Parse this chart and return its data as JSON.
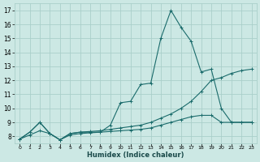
{
  "xlabel": "Humidex (Indice chaleur)",
  "ylabel": "",
  "background_color": "#cce8e4",
  "grid_color": "#aacfca",
  "line_color": "#1a6b6b",
  "xlim": [
    -0.5,
    23.5
  ],
  "ylim": [
    7.5,
    17.5
  ],
  "xticks": [
    0,
    1,
    2,
    3,
    4,
    5,
    6,
    7,
    8,
    9,
    10,
    11,
    12,
    13,
    14,
    15,
    16,
    17,
    18,
    19,
    20,
    21,
    22,
    23
  ],
  "yticks": [
    8,
    9,
    10,
    11,
    12,
    13,
    14,
    15,
    16,
    17
  ],
  "line1_x": [
    0,
    1,
    2,
    3,
    4,
    5,
    6,
    7,
    8,
    9,
    10,
    11,
    12,
    13,
    14,
    15,
    16,
    17,
    18,
    19,
    20,
    21,
    22,
    23
  ],
  "line1_y": [
    7.8,
    8.3,
    9.0,
    8.2,
    7.75,
    8.2,
    8.3,
    8.3,
    8.3,
    8.8,
    10.4,
    10.5,
    11.7,
    11.8,
    15.0,
    17.0,
    15.8,
    14.8,
    12.6,
    12.8,
    10.0,
    9.0,
    9.0,
    9.0
  ],
  "line2_x": [
    0,
    1,
    2,
    3,
    4,
    5,
    6,
    7,
    8,
    9,
    10,
    11,
    12,
    13,
    14,
    15,
    16,
    17,
    18,
    19,
    20,
    21,
    22,
    23
  ],
  "line2_y": [
    7.8,
    8.3,
    9.0,
    8.2,
    7.75,
    8.2,
    8.3,
    8.35,
    8.4,
    8.5,
    8.6,
    8.7,
    8.8,
    9.0,
    9.3,
    9.6,
    10.0,
    10.5,
    11.2,
    12.0,
    12.2,
    12.5,
    12.7,
    12.8
  ],
  "line3_x": [
    0,
    1,
    2,
    3,
    4,
    5,
    6,
    7,
    8,
    9,
    10,
    11,
    12,
    13,
    14,
    15,
    16,
    17,
    18,
    19,
    20,
    21,
    22,
    23
  ],
  "line3_y": [
    7.8,
    8.1,
    8.4,
    8.2,
    7.75,
    8.1,
    8.2,
    8.25,
    8.3,
    8.35,
    8.4,
    8.45,
    8.5,
    8.6,
    8.8,
    9.0,
    9.2,
    9.4,
    9.5,
    9.5,
    9.0,
    9.0,
    9.0,
    9.0
  ],
  "xlabel_fontsize": 6.0,
  "ylabel_fontsize": 5.5,
  "xtick_fontsize": 4.5,
  "ytick_fontsize": 5.5
}
